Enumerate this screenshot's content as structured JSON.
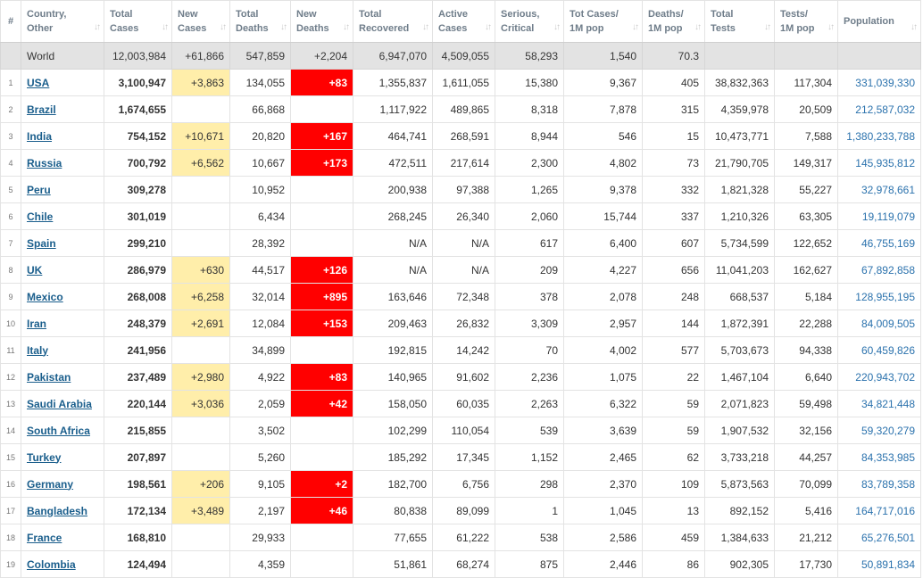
{
  "headers": [
    {
      "line1": "#",
      "line2": "",
      "sort": false
    },
    {
      "line1": "Country,",
      "line2": "Other",
      "sort": true
    },
    {
      "line1": "Total",
      "line2": "Cases",
      "sort": true
    },
    {
      "line1": "New",
      "line2": "Cases",
      "sort": true
    },
    {
      "line1": "Total",
      "line2": "Deaths",
      "sort": true
    },
    {
      "line1": "New",
      "line2": "Deaths",
      "sort": true
    },
    {
      "line1": "Total",
      "line2": "Recovered",
      "sort": true
    },
    {
      "line1": "Active",
      "line2": "Cases",
      "sort": true
    },
    {
      "line1": "Serious,",
      "line2": "Critical",
      "sort": true
    },
    {
      "line1": "Tot Cases/",
      "line2": "1M pop",
      "sort": true
    },
    {
      "line1": "Deaths/",
      "line2": "1M pop",
      "sort": true
    },
    {
      "line1": "Total",
      "line2": "Tests",
      "sort": true
    },
    {
      "line1": "Tests/",
      "line2": "1M pop",
      "sort": true
    },
    {
      "line1": "Population",
      "line2": "",
      "sort": true
    }
  ],
  "world": {
    "country": "World",
    "total_cases": "12,003,984",
    "new_cases": "+61,866",
    "total_deaths": "547,859",
    "new_deaths": "+2,204",
    "total_recovered": "6,947,070",
    "active_cases": "4,509,055",
    "serious": "58,293",
    "cases_per_1m": "1,540",
    "deaths_per_1m": "70.3",
    "total_tests": "",
    "tests_per_1m": "",
    "population": ""
  },
  "rows": [
    {
      "idx": "1",
      "country": "USA",
      "total_cases": "3,100,947",
      "new_cases": "+3,863",
      "total_deaths": "134,055",
      "new_deaths": "+83",
      "total_recovered": "1,355,837",
      "active_cases": "1,611,055",
      "serious": "15,380",
      "cases_per_1m": "9,367",
      "deaths_per_1m": "405",
      "total_tests": "38,832,363",
      "tests_per_1m": "117,304",
      "population": "331,039,330"
    },
    {
      "idx": "2",
      "country": "Brazil",
      "total_cases": "1,674,655",
      "new_cases": "",
      "total_deaths": "66,868",
      "new_deaths": "",
      "total_recovered": "1,117,922",
      "active_cases": "489,865",
      "serious": "8,318",
      "cases_per_1m": "7,878",
      "deaths_per_1m": "315",
      "total_tests": "4,359,978",
      "tests_per_1m": "20,509",
      "population": "212,587,032"
    },
    {
      "idx": "3",
      "country": "India",
      "total_cases": "754,152",
      "new_cases": "+10,671",
      "total_deaths": "20,820",
      "new_deaths": "+167",
      "total_recovered": "464,741",
      "active_cases": "268,591",
      "serious": "8,944",
      "cases_per_1m": "546",
      "deaths_per_1m": "15",
      "total_tests": "10,473,771",
      "tests_per_1m": "7,588",
      "population": "1,380,233,788"
    },
    {
      "idx": "4",
      "country": "Russia",
      "total_cases": "700,792",
      "new_cases": "+6,562",
      "total_deaths": "10,667",
      "new_deaths": "+173",
      "total_recovered": "472,511",
      "active_cases": "217,614",
      "serious": "2,300",
      "cases_per_1m": "4,802",
      "deaths_per_1m": "73",
      "total_tests": "21,790,705",
      "tests_per_1m": "149,317",
      "population": "145,935,812"
    },
    {
      "idx": "5",
      "country": "Peru",
      "total_cases": "309,278",
      "new_cases": "",
      "total_deaths": "10,952",
      "new_deaths": "",
      "total_recovered": "200,938",
      "active_cases": "97,388",
      "serious": "1,265",
      "cases_per_1m": "9,378",
      "deaths_per_1m": "332",
      "total_tests": "1,821,328",
      "tests_per_1m": "55,227",
      "population": "32,978,661"
    },
    {
      "idx": "6",
      "country": "Chile",
      "total_cases": "301,019",
      "new_cases": "",
      "total_deaths": "6,434",
      "new_deaths": "",
      "total_recovered": "268,245",
      "active_cases": "26,340",
      "serious": "2,060",
      "cases_per_1m": "15,744",
      "deaths_per_1m": "337",
      "total_tests": "1,210,326",
      "tests_per_1m": "63,305",
      "population": "19,119,079"
    },
    {
      "idx": "7",
      "country": "Spain",
      "total_cases": "299,210",
      "new_cases": "",
      "total_deaths": "28,392",
      "new_deaths": "",
      "total_recovered": "N/A",
      "active_cases": "N/A",
      "serious": "617",
      "cases_per_1m": "6,400",
      "deaths_per_1m": "607",
      "total_tests": "5,734,599",
      "tests_per_1m": "122,652",
      "population": "46,755,169"
    },
    {
      "idx": "8",
      "country": "UK",
      "total_cases": "286,979",
      "new_cases": "+630",
      "total_deaths": "44,517",
      "new_deaths": "+126",
      "total_recovered": "N/A",
      "active_cases": "N/A",
      "serious": "209",
      "cases_per_1m": "4,227",
      "deaths_per_1m": "656",
      "total_tests": "11,041,203",
      "tests_per_1m": "162,627",
      "population": "67,892,858"
    },
    {
      "idx": "9",
      "country": "Mexico",
      "total_cases": "268,008",
      "new_cases": "+6,258",
      "total_deaths": "32,014",
      "new_deaths": "+895",
      "total_recovered": "163,646",
      "active_cases": "72,348",
      "serious": "378",
      "cases_per_1m": "2,078",
      "deaths_per_1m": "248",
      "total_tests": "668,537",
      "tests_per_1m": "5,184",
      "population": "128,955,195"
    },
    {
      "idx": "10",
      "country": "Iran",
      "total_cases": "248,379",
      "new_cases": "+2,691",
      "total_deaths": "12,084",
      "new_deaths": "+153",
      "total_recovered": "209,463",
      "active_cases": "26,832",
      "serious": "3,309",
      "cases_per_1m": "2,957",
      "deaths_per_1m": "144",
      "total_tests": "1,872,391",
      "tests_per_1m": "22,288",
      "population": "84,009,505"
    },
    {
      "idx": "11",
      "country": "Italy",
      "total_cases": "241,956",
      "new_cases": "",
      "total_deaths": "34,899",
      "new_deaths": "",
      "total_recovered": "192,815",
      "active_cases": "14,242",
      "serious": "70",
      "cases_per_1m": "4,002",
      "deaths_per_1m": "577",
      "total_tests": "5,703,673",
      "tests_per_1m": "94,338",
      "population": "60,459,826"
    },
    {
      "idx": "12",
      "country": "Pakistan",
      "total_cases": "237,489",
      "new_cases": "+2,980",
      "total_deaths": "4,922",
      "new_deaths": "+83",
      "total_recovered": "140,965",
      "active_cases": "91,602",
      "serious": "2,236",
      "cases_per_1m": "1,075",
      "deaths_per_1m": "22",
      "total_tests": "1,467,104",
      "tests_per_1m": "6,640",
      "population": "220,943,702"
    },
    {
      "idx": "13",
      "country": "Saudi Arabia",
      "total_cases": "220,144",
      "new_cases": "+3,036",
      "total_deaths": "2,059",
      "new_deaths": "+42",
      "total_recovered": "158,050",
      "active_cases": "60,035",
      "serious": "2,263",
      "cases_per_1m": "6,322",
      "deaths_per_1m": "59",
      "total_tests": "2,071,823",
      "tests_per_1m": "59,498",
      "population": "34,821,448"
    },
    {
      "idx": "14",
      "country": "South Africa",
      "total_cases": "215,855",
      "new_cases": "",
      "total_deaths": "3,502",
      "new_deaths": "",
      "total_recovered": "102,299",
      "active_cases": "110,054",
      "serious": "539",
      "cases_per_1m": "3,639",
      "deaths_per_1m": "59",
      "total_tests": "1,907,532",
      "tests_per_1m": "32,156",
      "population": "59,320,279"
    },
    {
      "idx": "15",
      "country": "Turkey",
      "total_cases": "207,897",
      "new_cases": "",
      "total_deaths": "5,260",
      "new_deaths": "",
      "total_recovered": "185,292",
      "active_cases": "17,345",
      "serious": "1,152",
      "cases_per_1m": "2,465",
      "deaths_per_1m": "62",
      "total_tests": "3,733,218",
      "tests_per_1m": "44,257",
      "population": "84,353,985"
    },
    {
      "idx": "16",
      "country": "Germany",
      "total_cases": "198,561",
      "new_cases": "+206",
      "total_deaths": "9,105",
      "new_deaths": "+2",
      "total_recovered": "182,700",
      "active_cases": "6,756",
      "serious": "298",
      "cases_per_1m": "2,370",
      "deaths_per_1m": "109",
      "total_tests": "5,873,563",
      "tests_per_1m": "70,099",
      "population": "83,789,358"
    },
    {
      "idx": "17",
      "country": "Bangladesh",
      "total_cases": "172,134",
      "new_cases": "+3,489",
      "total_deaths": "2,197",
      "new_deaths": "+46",
      "total_recovered": "80,838",
      "active_cases": "89,099",
      "serious": "1",
      "cases_per_1m": "1,045",
      "deaths_per_1m": "13",
      "total_tests": "892,152",
      "tests_per_1m": "5,416",
      "population": "164,717,016"
    },
    {
      "idx": "18",
      "country": "France",
      "total_cases": "168,810",
      "new_cases": "",
      "total_deaths": "29,933",
      "new_deaths": "",
      "total_recovered": "77,655",
      "active_cases": "61,222",
      "serious": "538",
      "cases_per_1m": "2,586",
      "deaths_per_1m": "459",
      "total_tests": "1,384,633",
      "tests_per_1m": "21,212",
      "population": "65,276,501"
    },
    {
      "idx": "19",
      "country": "Colombia",
      "total_cases": "124,494",
      "new_cases": "",
      "total_deaths": "4,359",
      "new_deaths": "",
      "total_recovered": "51,861",
      "active_cases": "68,274",
      "serious": "875",
      "cases_per_1m": "2,446",
      "deaths_per_1m": "86",
      "total_tests": "902,305",
      "tests_per_1m": "17,730",
      "population": "50,891,834"
    }
  ]
}
